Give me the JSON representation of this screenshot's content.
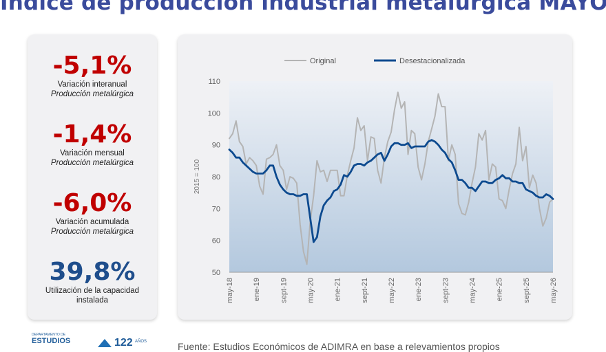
{
  "header": {
    "title": "Índice de producción industrial metalúrgica MAYO"
  },
  "kpis": [
    {
      "value": "-5,1%",
      "label": "Variación interanual",
      "sub": "Producción metalúrgica",
      "color": "#c00000"
    },
    {
      "value": "-1,4%",
      "label": "Variación mensual",
      "sub": "Producción metalúrgica",
      "color": "#c00000"
    },
    {
      "value": "-6,0%",
      "label": "Variación acumulada",
      "sub": "Producción metalúrgica",
      "color": "#c00000"
    },
    {
      "value": "39,8%",
      "label": "Utilización de la capacidad",
      "sub": "instalada",
      "color": "#1f4e8c"
    }
  ],
  "footer": {
    "dept_small": "DEPARTAMENTO DE",
    "dept_big": "ESTUDIOS",
    "anniv_number": "122",
    "anniv_word": "AÑOS",
    "source": "Fuente: Estudios Económicos de ADIMRA en base a relevamientos propios"
  },
  "chart_data": {
    "type": "line",
    "ylabel": "2015 = 100",
    "xlabel": "",
    "ylim": [
      50,
      110
    ],
    "yticks": [
      50,
      60,
      70,
      80,
      90,
      100,
      110
    ],
    "grid": false,
    "legend_position": "top",
    "x_start": "may-18",
    "x_end": "may-26",
    "tick_labels": [
      "may-18",
      "ene-19",
      "sept-19",
      "may-20",
      "ene-21",
      "sept-21",
      "may-22",
      "ene-23",
      "sept-23",
      "may-24",
      "ene-25",
      "sept-25",
      "may-26"
    ],
    "colors": {
      "Original": "#b4b4b4",
      "Desestacionalizada": "#0d4a8f",
      "area_top": "#eef1f6",
      "area_bottom": "#b3c8de"
    },
    "series": [
      {
        "name": "Original",
        "values": [
          92,
          93.5,
          97.5,
          91,
          89.5,
          84,
          86,
          85,
          83.5,
          77,
          74.5,
          85.5,
          86,
          87,
          90,
          83.5,
          82,
          76,
          80,
          79.5,
          78,
          65,
          56.5,
          52.5,
          66,
          74,
          85,
          81.5,
          82,
          78.5,
          82,
          82,
          82,
          74,
          74,
          80.5,
          85,
          89,
          98.5,
          94.5,
          96,
          85,
          92.5,
          92,
          82,
          78,
          86,
          91,
          94,
          101,
          106.5,
          101.5,
          103.5,
          87,
          94.5,
          93.5,
          83,
          79,
          84,
          91,
          95,
          99,
          106,
          102,
          102,
          85,
          90,
          87,
          71.5,
          68.5,
          68,
          72,
          78,
          83,
          93.5,
          91.5,
          94.5,
          79,
          84,
          83,
          73,
          72.5,
          70,
          76,
          81,
          84,
          95.5,
          85,
          89.5,
          76.5,
          80.5,
          78,
          70,
          64.5,
          67,
          72,
          73
        ]
      },
      {
        "name": "Desestacionalizada",
        "values": [
          88.5,
          87.5,
          86,
          86,
          84.5,
          83.5,
          82.5,
          81.5,
          81,
          81,
          81,
          82,
          83.5,
          83.5,
          80,
          77.5,
          76,
          75,
          74.5,
          74.5,
          74,
          74,
          74.5,
          74.5,
          67,
          59.5,
          61,
          67.5,
          71,
          72.5,
          73.5,
          75.5,
          76,
          77.5,
          80.5,
          80,
          81.5,
          83.5,
          84,
          84,
          83.5,
          84.5,
          85,
          86,
          87,
          87.5,
          85,
          87,
          89.5,
          90.5,
          90.5,
          90,
          90,
          90.5,
          89,
          89.5,
          89.5,
          89.5,
          89.5,
          91,
          91.5,
          91,
          90,
          88.5,
          87.5,
          85.5,
          84.5,
          82,
          79,
          79,
          78,
          76.5,
          76.5,
          75.5,
          77,
          78.5,
          78.5,
          78,
          78,
          79,
          79.5,
          80.5,
          79.5,
          79.5,
          78.5,
          78.5,
          78,
          78,
          76,
          75.5,
          75,
          74,
          73.5,
          73.5,
          74.5,
          74,
          73
        ]
      }
    ]
  }
}
